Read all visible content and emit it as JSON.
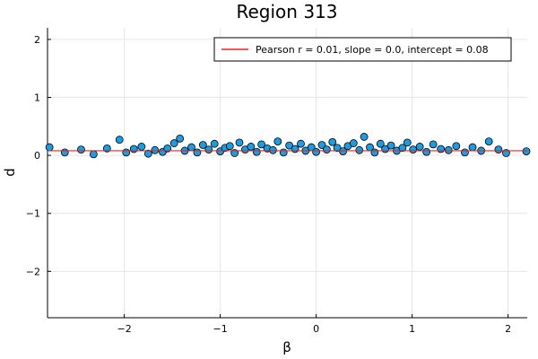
{
  "chart_data": {
    "type": "scatter",
    "title": "Region 313",
    "xlabel": "β",
    "ylabel": "d",
    "xlim": [
      -2.8,
      2.2
    ],
    "ylim": [
      -2.8,
      2.2
    ],
    "x_ticks": [
      -2,
      -1,
      0,
      1,
      2
    ],
    "x_tick_labels": [
      "−2",
      "−1",
      "0",
      "1",
      "2"
    ],
    "y_ticks": [
      -2,
      -1,
      0,
      1,
      2
    ],
    "y_tick_labels": [
      "−2",
      "−1",
      "0",
      "1",
      "2"
    ],
    "grid": true,
    "legend_position": "top-right",
    "series": [
      {
        "kind": "scatter",
        "color": "#1f9be0",
        "edge_color": "#000000",
        "x": [
          -2.78,
          -2.62,
          -2.45,
          -2.32,
          -2.18,
          -2.05,
          -1.98,
          -1.9,
          -1.82,
          -1.75,
          -1.68,
          -1.6,
          -1.55,
          -1.48,
          -1.42,
          -1.37,
          -1.3,
          -1.24,
          -1.18,
          -1.12,
          -1.06,
          -1.0,
          -0.95,
          -0.9,
          -0.85,
          -0.8,
          -0.74,
          -0.68,
          -0.62,
          -0.57,
          -0.51,
          -0.45,
          -0.4,
          -0.34,
          -0.28,
          -0.22,
          -0.16,
          -0.11,
          -0.05,
          0.0,
          0.06,
          0.11,
          0.17,
          0.22,
          0.28,
          0.33,
          0.39,
          0.45,
          0.5,
          0.56,
          0.61,
          0.67,
          0.72,
          0.78,
          0.84,
          0.9,
          0.95,
          1.01,
          1.08,
          1.15,
          1.22,
          1.3,
          1.38,
          1.46,
          1.55,
          1.63,
          1.72,
          1.8,
          1.9,
          1.98,
          2.2
        ],
        "y": [
          0.14,
          0.05,
          0.1,
          0.02,
          0.12,
          0.27,
          0.05,
          0.11,
          0.15,
          0.03,
          0.09,
          0.06,
          0.12,
          0.21,
          0.29,
          0.08,
          0.14,
          0.05,
          0.18,
          0.1,
          0.2,
          0.07,
          0.13,
          0.16,
          0.04,
          0.22,
          0.1,
          0.15,
          0.06,
          0.19,
          0.12,
          0.09,
          0.24,
          0.05,
          0.17,
          0.11,
          0.2,
          0.08,
          0.14,
          0.06,
          0.18,
          0.1,
          0.23,
          0.13,
          0.07,
          0.16,
          0.21,
          0.09,
          0.32,
          0.14,
          0.05,
          0.2,
          0.11,
          0.17,
          0.08,
          0.13,
          0.22,
          0.1,
          0.15,
          0.06,
          0.19,
          0.11,
          0.09,
          0.16,
          0.05,
          0.14,
          0.08,
          0.24,
          0.1,
          0.04,
          0.07
        ]
      },
      {
        "kind": "line",
        "name": "Pearson r = 0.01, slope = 0.0, intercept = 0.08",
        "color": "#e8201e",
        "slope": 0.0,
        "intercept": 0.08
      }
    ]
  }
}
